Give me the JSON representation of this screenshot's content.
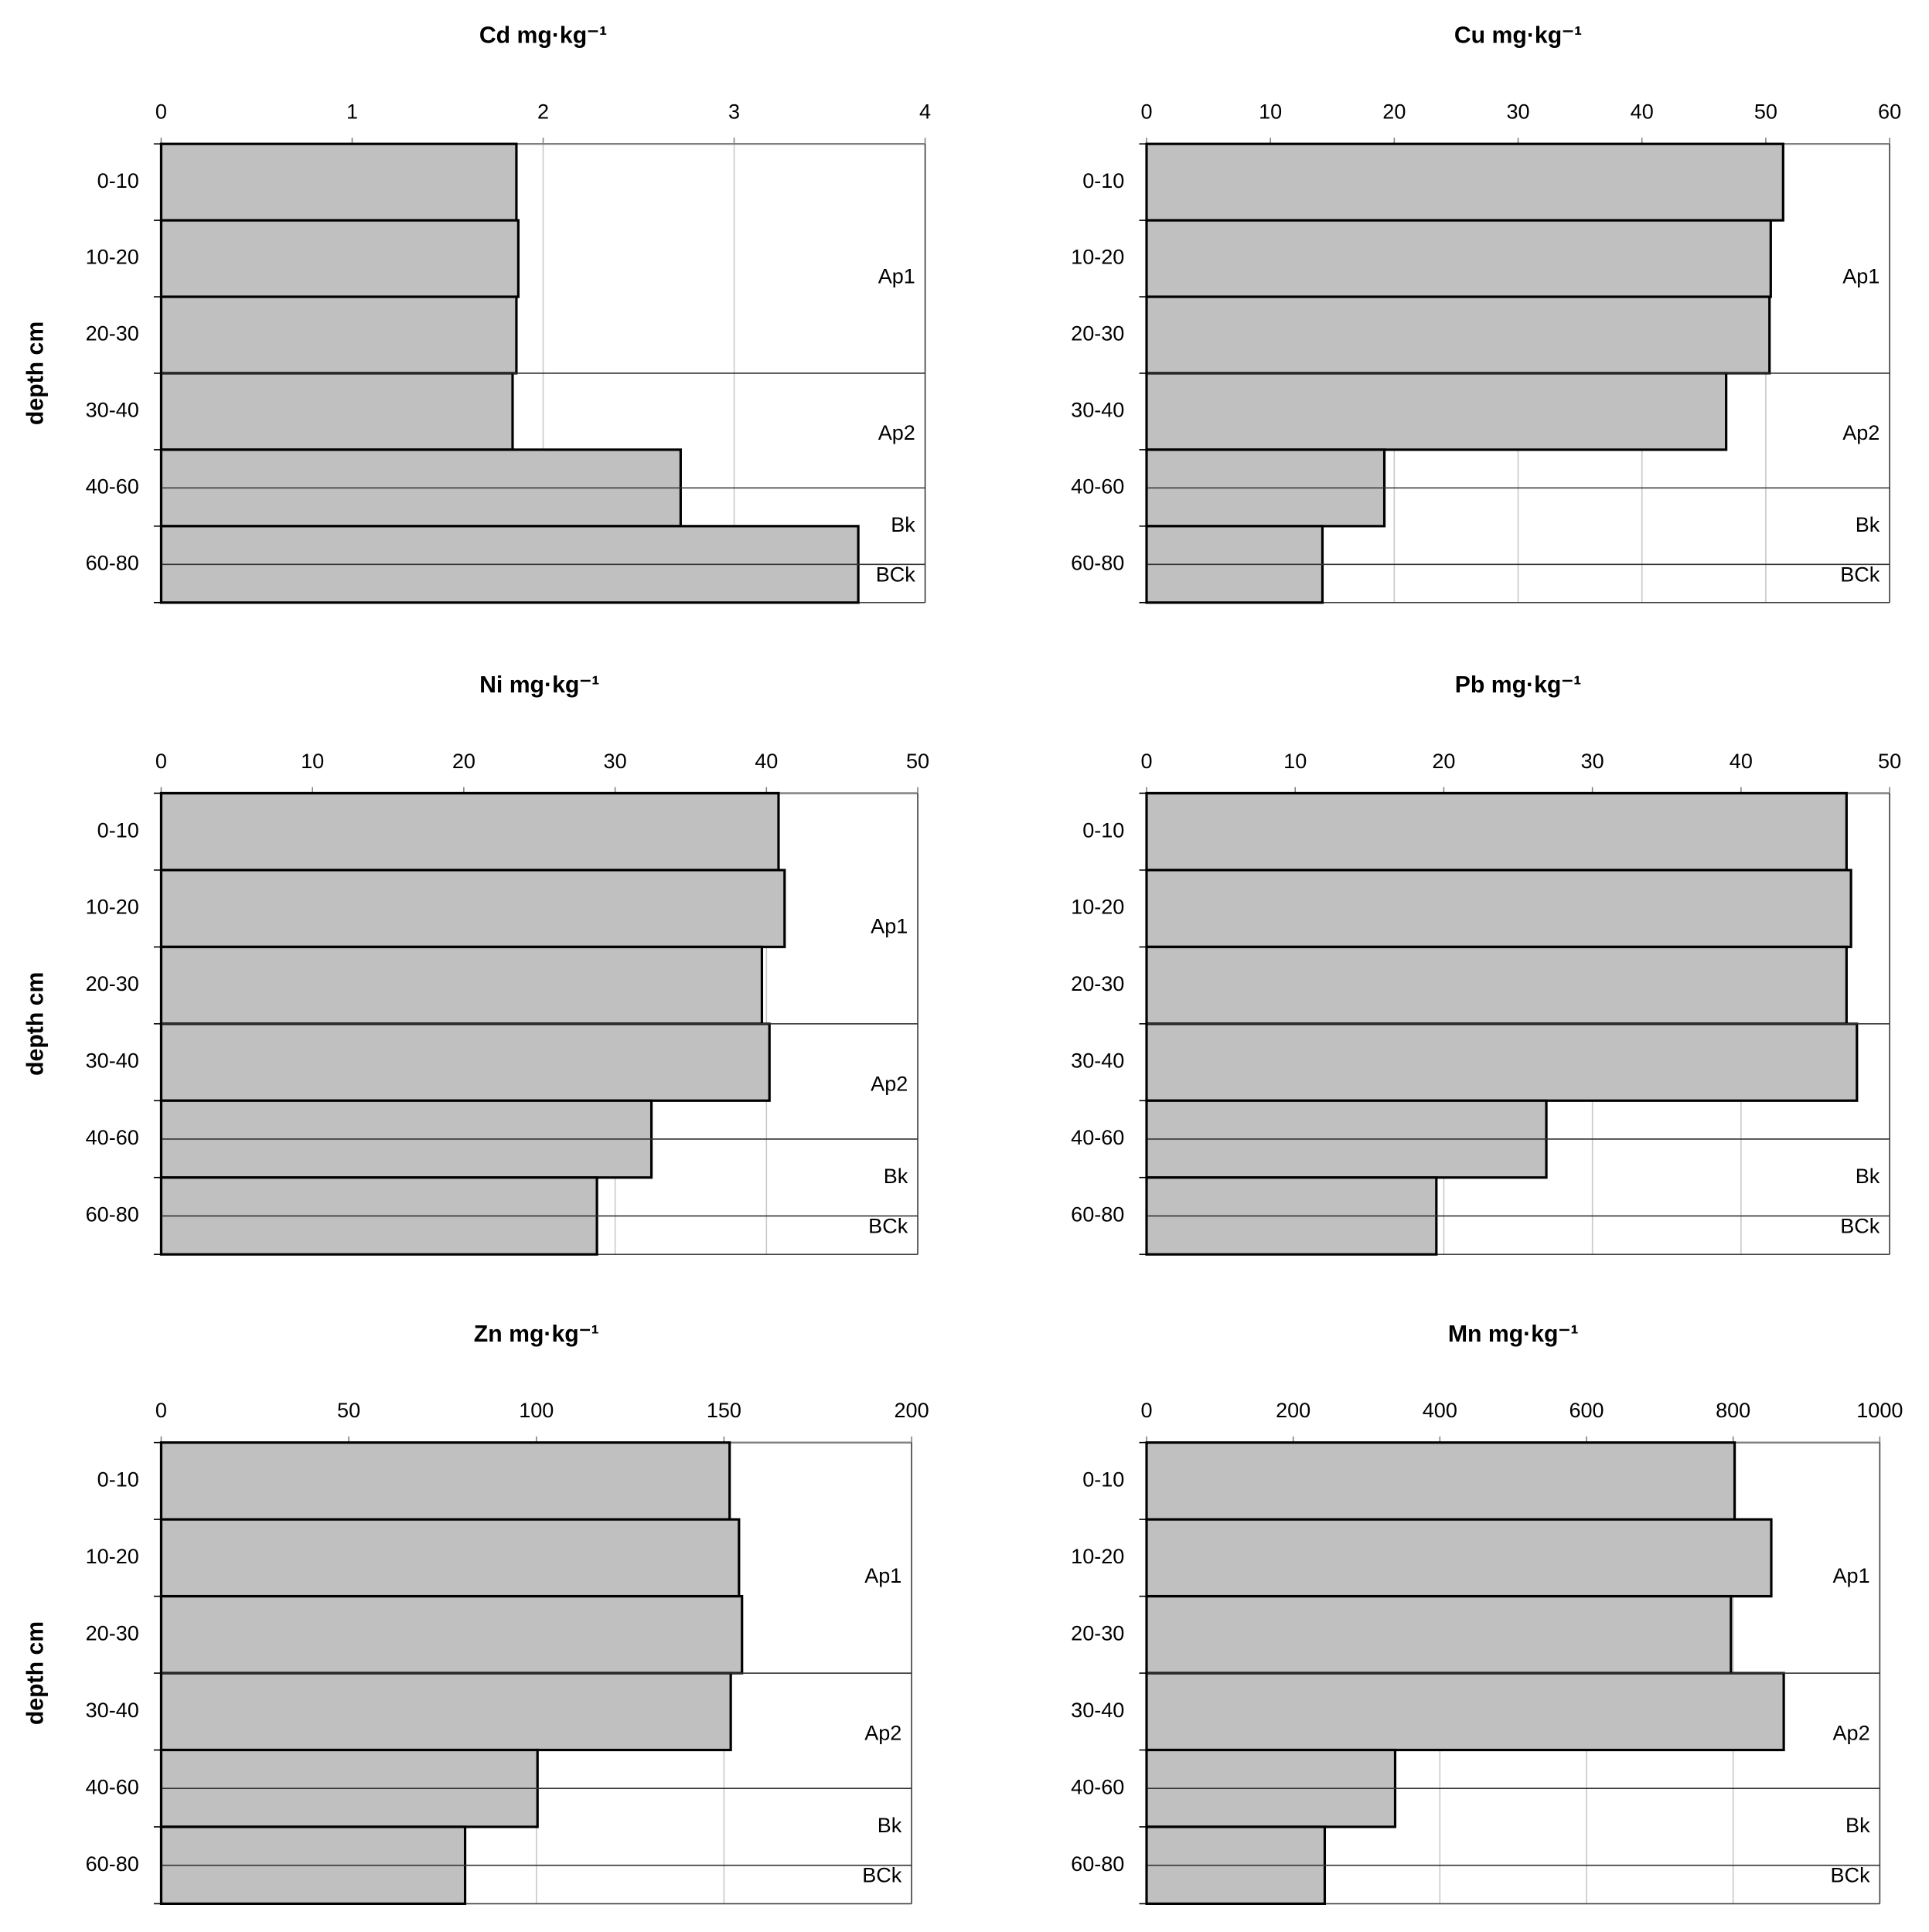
{
  "chart_data": [
    {
      "type": "bar",
      "orientation": "horizontal",
      "title": "Cd mg·kg⁻¹",
      "y_label": "depth cm",
      "categories": [
        "0-10",
        "10-20",
        "20-30",
        "30-40",
        "40-60",
        "60-80"
      ],
      "values": [
        1.86,
        1.87,
        1.86,
        1.84,
        2.72,
        3.65
      ],
      "color": "#c0c0c0",
      "xlim": [
        0,
        4
      ],
      "xticks": [
        0,
        1,
        2,
        3,
        4
      ],
      "grid": true,
      "annotations": [
        "Ap1",
        "Ap2",
        "Bk",
        "BCk"
      ]
    },
    {
      "type": "bar",
      "orientation": "horizontal",
      "title": "Cu mg·kg⁻¹",
      "categories": [
        "0-10",
        "10-20",
        "20-30",
        "30-40",
        "40-60",
        "60-80"
      ],
      "values": [
        51.4,
        50.4,
        50.3,
        46.8,
        19.2,
        14.2
      ],
      "color": "#c0c0c0",
      "xlim": [
        0,
        60
      ],
      "xticks": [
        0,
        10,
        20,
        30,
        40,
        50,
        60
      ],
      "grid": true,
      "annotations": [
        "Ap1",
        "Ap2",
        "Bk",
        "BCk"
      ]
    },
    {
      "type": "bar",
      "orientation": "horizontal",
      "title": "Ni mg·kg⁻¹",
      "y_label": "depth cm",
      "categories": [
        "0-10",
        "10-20",
        "20-30",
        "30-40",
        "40-60",
        "60-80"
      ],
      "values": [
        40.8,
        41.2,
        39.7,
        40.2,
        32.4,
        28.8
      ],
      "color": "#c0c0c0",
      "xlim": [
        0,
        50
      ],
      "xticks": [
        0,
        10,
        20,
        30,
        40,
        50
      ],
      "grid": true,
      "annotations": [
        "Ap1",
        "Ap2",
        "Bk",
        "BCk"
      ]
    },
    {
      "type": "bar",
      "orientation": "horizontal",
      "title": "Pb mg·kg⁻¹",
      "categories": [
        "0-10",
        "10-20",
        "20-30",
        "30-40",
        "40-60",
        "60-80"
      ],
      "values": [
        47.1,
        47.4,
        47.1,
        47.8,
        26.9,
        19.5
      ],
      "color": "#c0c0c0",
      "xlim": [
        0,
        50
      ],
      "xticks": [
        0,
        10,
        20,
        30,
        40,
        50
      ],
      "grid": true,
      "annotations": [
        "Bk",
        "BCk"
      ]
    },
    {
      "type": "bar",
      "orientation": "horizontal",
      "title": "Zn mg·kg⁻¹",
      "y_label": "depth cm",
      "categories": [
        "0-10",
        "10-20",
        "20-30",
        "30-40",
        "40-60",
        "60-80"
      ],
      "values": [
        151.5,
        154,
        154.8,
        151.8,
        100.3,
        81
      ],
      "color": "#c0c0c0",
      "xlim": [
        0,
        200
      ],
      "xticks": [
        0,
        50,
        100,
        150,
        200
      ],
      "grid": true,
      "annotations": [
        "Ap1",
        "Ap2",
        "Bk",
        "BCk"
      ]
    },
    {
      "type": "bar",
      "orientation": "horizontal",
      "title": "Mn mg·kg⁻¹",
      "categories": [
        "0-10",
        "10-20",
        "20-30",
        "30-40",
        "40-60",
        "60-80"
      ],
      "values": [
        802,
        852,
        797,
        869,
        339,
        243
      ],
      "color": "#c0c0c0",
      "xlim": [
        0,
        1000
      ],
      "xticks": [
        0,
        200,
        400,
        600,
        800,
        1000
      ],
      "grid": true,
      "annotations": [
        "Ap1",
        "Ap2",
        "Bk",
        "BCk"
      ]
    }
  ]
}
